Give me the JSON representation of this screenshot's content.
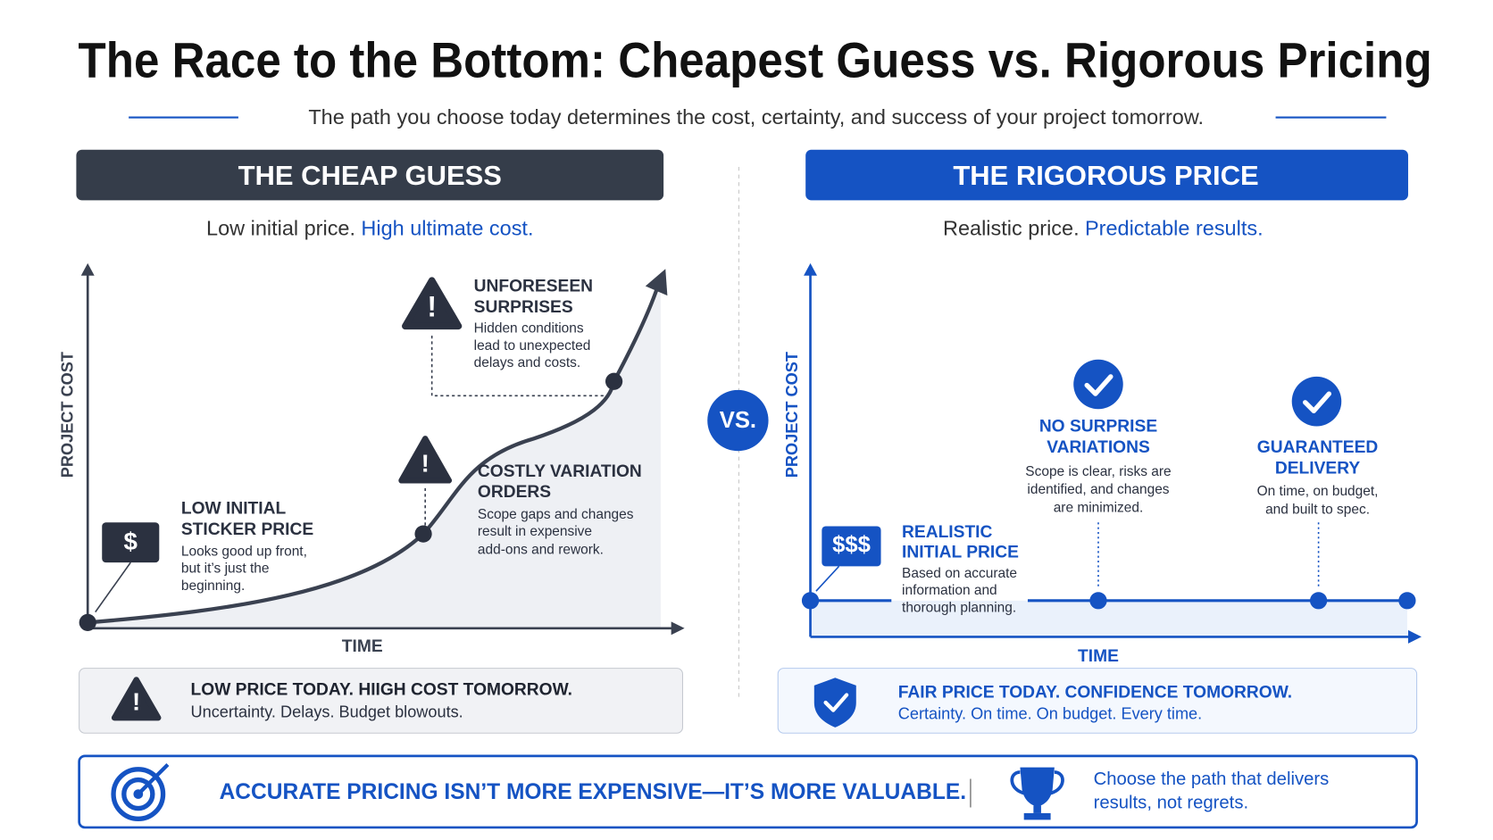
{
  "header": {
    "title": "The Race to the Bottom: Cheapest Guess vs. Rigorous Pricing",
    "subtitle": "The path you choose today determines the cost, certainty, and success of your project tomorrow."
  },
  "left": {
    "heading": "THE CHEAP GUESS",
    "tagline_plain": "Low initial price.",
    "tagline_emphasis": "High ultimate cost.",
    "y_axis_label": "PROJECT COST",
    "x_axis_label": "TIME",
    "price_icon": "$",
    "callouts": [
      {
        "title": [
          "LOW INITIAL",
          "STICKER PRICE"
        ],
        "body": [
          "Looks good up front,",
          "but it’s just the",
          "beginning."
        ]
      },
      {
        "title": [
          "COSTLY VARIATION",
          "ORDERS"
        ],
        "body": [
          "Scope gaps and changes",
          "result in expensive",
          "add-ons and rework."
        ]
      },
      {
        "title": [
          "UNFORESEEN",
          "SURPRISES"
        ],
        "body": [
          "Hidden conditions",
          "lead to unexpected",
          "delays and costs."
        ]
      }
    ],
    "summary": {
      "title": "LOW PRICE TODAY. HIIGH COST TOMORROW.",
      "body": "Uncertainty. Delays. Budget blowouts."
    }
  },
  "versus": "VS.",
  "right": {
    "heading": "THE RIGOROUS PRICE",
    "tagline_plain": "Realistic price.",
    "tagline_emphasis": "Predictable results.",
    "y_axis_label": "PROJECT COST",
    "x_axis_label": "TIME",
    "price_icon": "$$$",
    "callouts": [
      {
        "title": [
          "REALISTIC",
          "INITIAL PRICE"
        ],
        "body": [
          "Based on accurate",
          "information and",
          "thorough planning."
        ]
      },
      {
        "title": [
          "NO SURPRISE",
          "VARIATIONS"
        ],
        "body": [
          "Scope is clear, risks are",
          "identified, and changes",
          "are minimized."
        ]
      },
      {
        "title": [
          "GUARANTEED",
          "DELIVERY"
        ],
        "body": [
          "On time, on budget,",
          "and built to spec."
        ]
      }
    ],
    "summary": {
      "title": "FAIR PRICE TODAY. CONFIDENCE TOMORROW.",
      "body": "Certainty. On time. On budget. Every time."
    }
  },
  "footer": {
    "headline": "ACCURATE PRICING ISN’T MORE EXPENSIVE—IT’S MORE VALUABLE.",
    "closing": [
      "Choose the path that delivers",
      "results, not regrets."
    ]
  }
}
